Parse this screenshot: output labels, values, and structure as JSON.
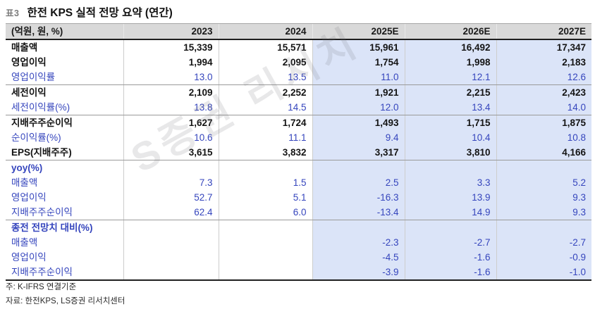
{
  "header": {
    "tag": "표3",
    "title": "한전 KPS 실적 전망 요약 (연간)"
  },
  "table": {
    "unit_label": "(억원, 원, %)",
    "columns": [
      "2023",
      "2024",
      "2025E",
      "2026E",
      "2027E"
    ],
    "sections": [
      {
        "rows": [
          {
            "label": "매출액",
            "style": "bold",
            "values": [
              "15,339",
              "15,571",
              "15,961",
              "16,492",
              "17,347"
            ]
          },
          {
            "label": "영업이익",
            "style": "bold",
            "values": [
              "1,994",
              "2,095",
              "1,754",
              "1,998",
              "2,183"
            ]
          },
          {
            "label": "영업이익률",
            "style": "ratio",
            "values": [
              "13.0",
              "13.5",
              "11.0",
              "12.1",
              "12.6"
            ]
          }
        ]
      },
      {
        "rows": [
          {
            "label": "세전이익",
            "style": "bold",
            "values": [
              "2,109",
              "2,252",
              "1,921",
              "2,215",
              "2,423"
            ]
          },
          {
            "label": "세전이익률(%)",
            "style": "ratio",
            "values": [
              "13.8",
              "14.5",
              "12.0",
              "13.4",
              "14.0"
            ]
          }
        ]
      },
      {
        "rows": [
          {
            "label": "지배주주순이익",
            "style": "bold",
            "values": [
              "1,627",
              "1,724",
              "1,493",
              "1,715",
              "1,875"
            ]
          },
          {
            "label": "순이익률(%)",
            "style": "ratio",
            "values": [
              "10.6",
              "11.1",
              "9.4",
              "10.4",
              "10.8"
            ]
          },
          {
            "label": "EPS(지배주주)",
            "style": "bold",
            "values": [
              "3,615",
              "3,832",
              "3,317",
              "3,810",
              "4,166"
            ]
          }
        ]
      },
      {
        "header": "yoy(%)",
        "rows": [
          {
            "label": "매출액",
            "style": "ratio",
            "values": [
              "7.3",
              "1.5",
              "2.5",
              "3.3",
              "5.2"
            ]
          },
          {
            "label": "영업이익",
            "style": "ratio",
            "values": [
              "52.7",
              "5.1",
              "-16.3",
              "13.9",
              "9.3"
            ]
          },
          {
            "label": "지배주주순이익",
            "style": "ratio",
            "values": [
              "62.4",
              "6.0",
              "-13.4",
              "14.9",
              "9.3"
            ]
          }
        ]
      },
      {
        "header": "종전 전망치 대비(%)",
        "rows": [
          {
            "label": "매출액",
            "style": "ratio",
            "values": [
              "",
              "",
              "-2.3",
              "-2.7",
              "-2.7"
            ]
          },
          {
            "label": "영업이익",
            "style": "ratio",
            "values": [
              "",
              "",
              "-4.5",
              "-1.6",
              "-0.9"
            ]
          },
          {
            "label": "지배주주순이익",
            "style": "ratio",
            "values": [
              "",
              "",
              "-3.9",
              "-1.6",
              "-1.0"
            ]
          }
        ]
      }
    ]
  },
  "watermark": "S증권 리서치",
  "notes": [
    "주: K-IFRS 연결기준",
    "자료: 한전KPS, LS증권 리서치센터"
  ],
  "colors": {
    "accent_blue": "#3545bd",
    "forecast_bg": "#dbe4f8",
    "header_bg": "#d9d9d9",
    "section_line": "#9a9a9a"
  }
}
